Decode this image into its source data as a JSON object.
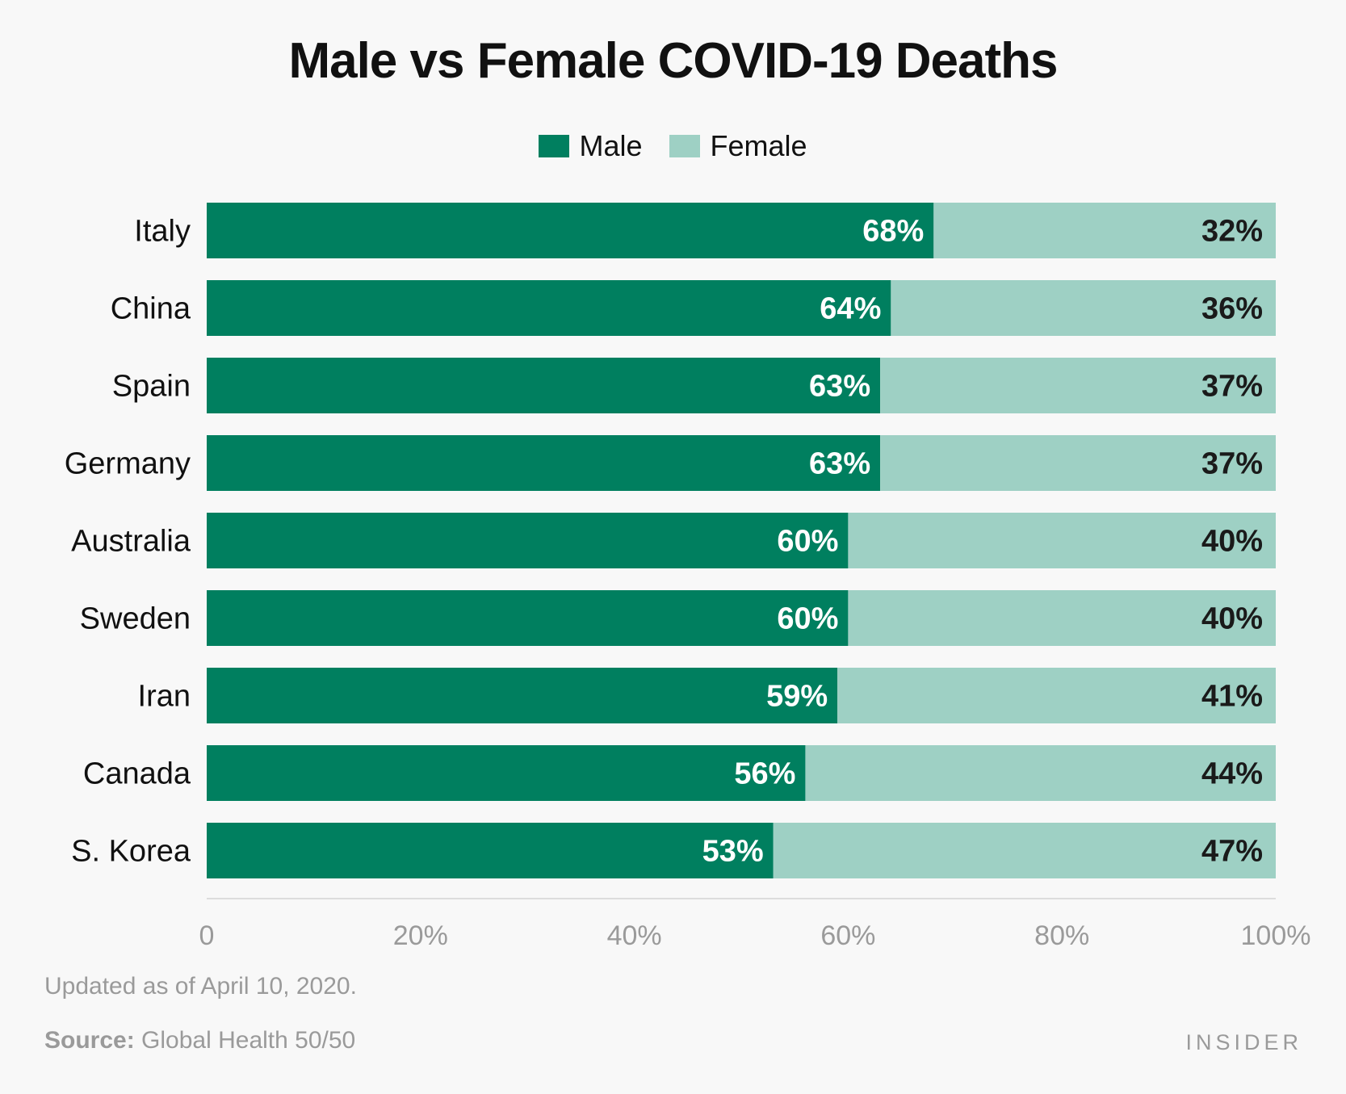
{
  "chart_data": {
    "type": "bar",
    "orientation": "horizontal",
    "stacked": true,
    "title": "Male vs Female COVID-19 Deaths",
    "xlabel": "",
    "ylabel": "",
    "xlim": [
      0,
      100
    ],
    "x_ticks": [
      "0",
      "20%",
      "40%",
      "60%",
      "80%",
      "100%"
    ],
    "x_tick_values": [
      0,
      20,
      40,
      60,
      80,
      100
    ],
    "legend_position": "top-center",
    "categories": [
      "Italy",
      "China",
      "Spain",
      "Germany",
      "Australia",
      "Sweden",
      "Iran",
      "Canada",
      "S. Korea"
    ],
    "series": [
      {
        "name": "Male",
        "color": "#007f5f",
        "values": [
          68,
          64,
          63,
          63,
          60,
          60,
          59,
          56,
          53
        ]
      },
      {
        "name": "Female",
        "color": "#9ed0c4",
        "values": [
          32,
          36,
          37,
          37,
          40,
          40,
          41,
          44,
          47
        ]
      }
    ],
    "value_suffix": "%"
  },
  "notes": {
    "updated": "Updated as of April 10, 2020.",
    "source_label": "Source:",
    "source_text": " Global Health 50/50"
  },
  "brand": "INSIDER"
}
